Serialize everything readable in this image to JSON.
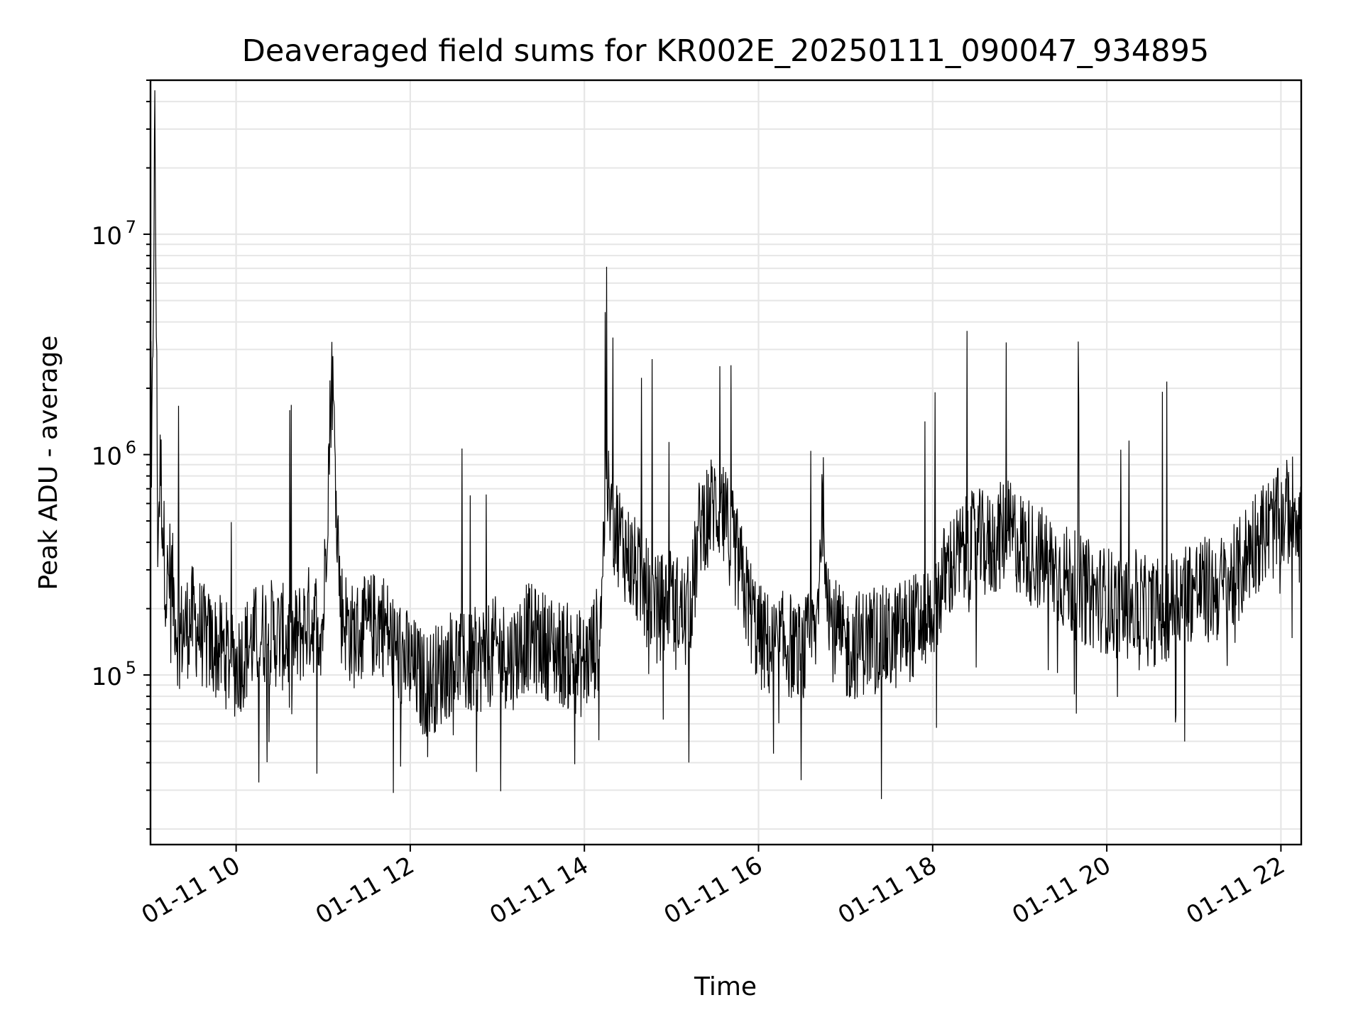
{
  "chart_data": {
    "type": "line",
    "title": "Deaveraged field sums for KR002E_20250111_090047_934895",
    "xlabel": "Time",
    "ylabel": "Peak ADU - average",
    "x_range": [
      "2025-01-11 09:01",
      "2025-01-11 22:14"
    ],
    "x_ticks": [
      {
        "t": "2025-01-11 10:00",
        "label": "01-11 10"
      },
      {
        "t": "2025-01-11 12:00",
        "label": "01-11 12"
      },
      {
        "t": "2025-01-11 14:00",
        "label": "01-11 14"
      },
      {
        "t": "2025-01-11 16:00",
        "label": "01-11 16"
      },
      {
        "t": "2025-01-11 18:00",
        "label": "01-11 18"
      },
      {
        "t": "2025-01-11 20:00",
        "label": "01-11 20"
      },
      {
        "t": "2025-01-11 22:00",
        "label": "01-11 22"
      }
    ],
    "y_scale": "log",
    "ylim": [
      17000,
      50000000
    ],
    "y_ticks": [
      {
        "value": 100000,
        "base": "10",
        "exp": "5"
      },
      {
        "value": 1000000,
        "base": "10",
        "exp": "6"
      },
      {
        "value": 10000000,
        "base": "10",
        "exp": "7"
      }
    ],
    "grid": true,
    "line_color": "#000000",
    "grid_color": "#e6e6e6",
    "series": [
      {
        "times": [
          "09:01",
          "09:04",
          "09:06",
          "09:08",
          "09:10",
          "09:12",
          "09:15",
          "09:20",
          "09:30",
          "09:40",
          "09:50",
          "10:00",
          "10:10",
          "10:20",
          "10:30",
          "10:40",
          "10:50",
          "11:00",
          "11:06",
          "11:12",
          "11:20",
          "11:30",
          "11:40",
          "11:50",
          "12:00",
          "12:10",
          "12:20",
          "12:30",
          "12:40",
          "12:50",
          "13:00",
          "13:10",
          "13:20",
          "13:30",
          "13:40",
          "13:50",
          "14:00",
          "14:10",
          "14:15",
          "14:20",
          "14:30",
          "14:40",
          "14:50",
          "15:00",
          "15:10",
          "15:15",
          "15:20",
          "15:30",
          "15:40",
          "15:50",
          "16:00",
          "16:10",
          "16:20",
          "16:30",
          "16:40",
          "16:44",
          "16:50",
          "17:00",
          "17:10",
          "17:20",
          "17:30",
          "17:40",
          "17:50",
          "18:00",
          "18:10",
          "18:20",
          "18:30",
          "18:40",
          "18:50",
          "19:00",
          "19:10",
          "19:20",
          "19:30",
          "19:40",
          "19:50",
          "20:00",
          "20:10",
          "20:20",
          "20:30",
          "20:40",
          "20:50",
          "21:00",
          "21:10",
          "21:20",
          "21:30",
          "21:40",
          "21:50",
          "22:00",
          "22:05",
          "22:10",
          "22:14"
        ],
        "values": [
          180000,
          35000000,
          450000,
          900000,
          400000,
          250000,
          300000,
          150000,
          180000,
          140000,
          130000,
          110000,
          140000,
          160000,
          150000,
          140000,
          180000,
          170000,
          2500000,
          200000,
          150000,
          160000,
          180000,
          130000,
          110000,
          90000,
          100000,
          120000,
          110000,
          120000,
          130000,
          120000,
          150000,
          140000,
          130000,
          120000,
          110000,
          150000,
          700000,
          500000,
          350000,
          250000,
          200000,
          220000,
          180000,
          250000,
          500000,
          600000,
          450000,
          250000,
          150000,
          130000,
          140000,
          120000,
          160000,
          650000,
          170000,
          130000,
          140000,
          150000,
          140000,
          160000,
          170000,
          200000,
          300000,
          350000,
          400000,
          380000,
          450000,
          400000,
          350000,
          320000,
          280000,
          250000,
          230000,
          220000,
          200000,
          210000,
          190000,
          200000,
          230000,
          250000,
          240000,
          250000,
          280000,
          400000,
          450000,
          500000,
          550000,
          600000,
          500000
        ]
      }
    ]
  }
}
